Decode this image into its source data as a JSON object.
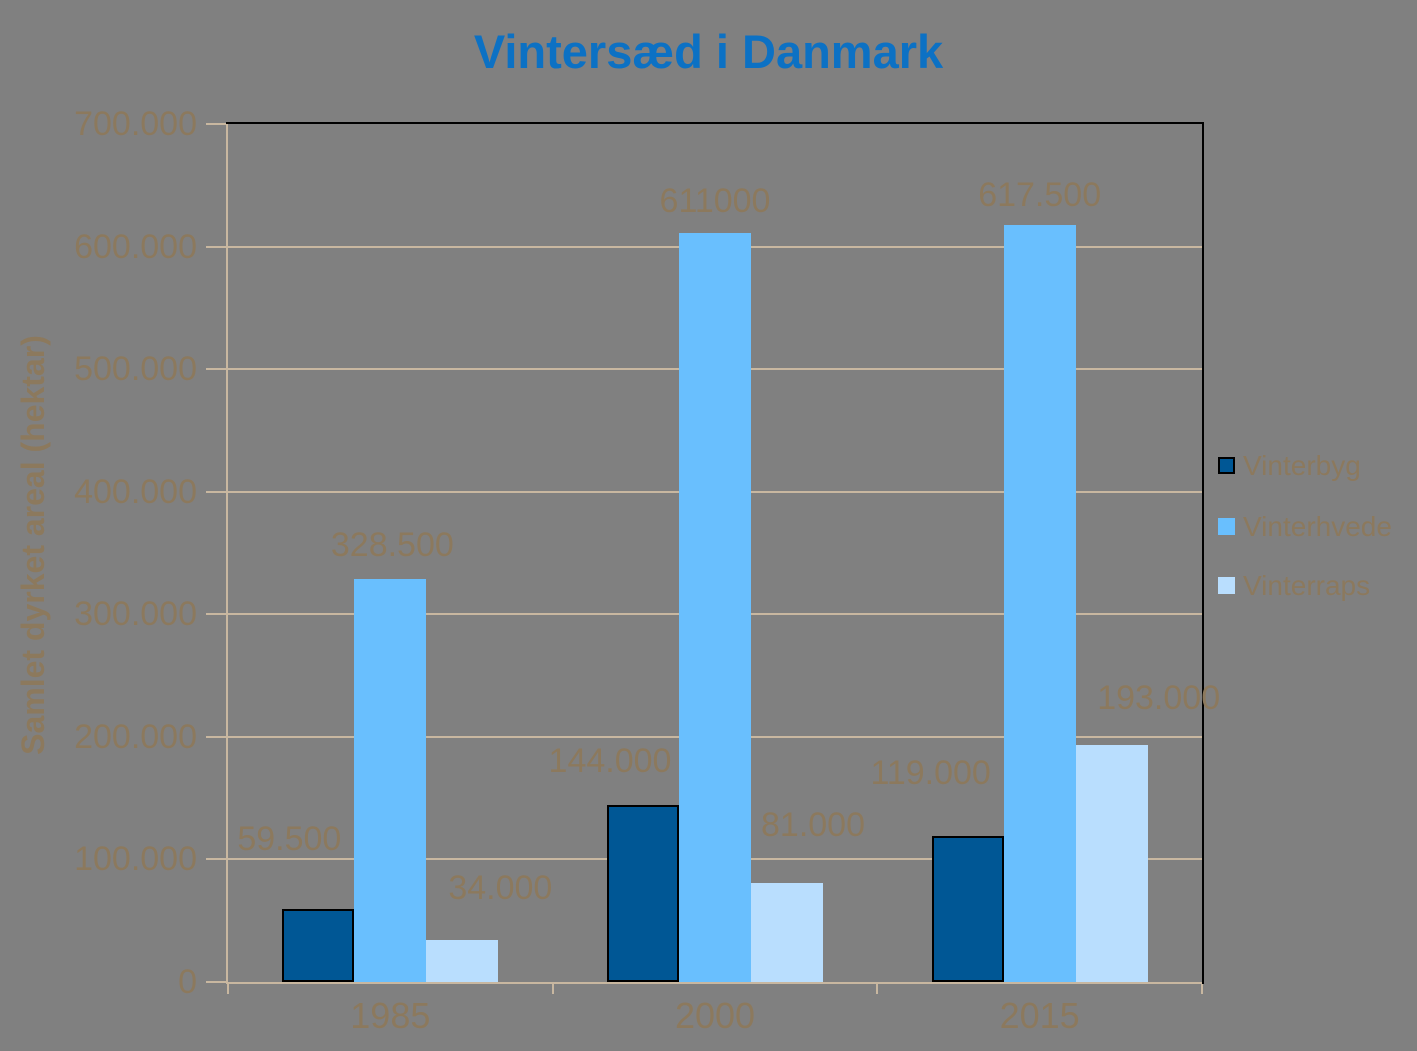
{
  "chart_data": {
    "type": "bar",
    "title": "Vintersæd i Danmark",
    "xlabel": "",
    "ylabel": "Samlet dyrket areal (hektar)",
    "categories": [
      "1985",
      "2000",
      "2015"
    ],
    "series": [
      {
        "name": "Vinterbyg",
        "color": "#005795",
        "border_color": "#000000",
        "values": [
          59500,
          144000,
          119000
        ],
        "labels": [
          "59.500",
          "144.000",
          "119.000"
        ]
      },
      {
        "name": "Vinterhvede",
        "color": "#69BFFE",
        "border_color": null,
        "values": [
          328500,
          611000,
          617500
        ],
        "labels": [
          "328.500",
          "611000",
          "617.500"
        ]
      },
      {
        "name": "Vinterraps",
        "color": "#B9DEFE",
        "border_color": null,
        "values": [
          34000,
          81000,
          193000
        ],
        "labels": [
          "34.000",
          "81.000",
          "193.000"
        ]
      }
    ],
    "ylim": [
      0,
      700000
    ],
    "ytick_step": 100000,
    "ytick_labels": [
      "0",
      "100.000",
      "200.000",
      "300.000",
      "400.000",
      "500.000",
      "600.000",
      "700.000"
    ],
    "grid": true,
    "legend_position": "right",
    "label_offsets": [
      [
        [
          -29,
          -53
        ],
        [
          -33,
          -27
        ],
        [
          -37,
          -46
        ]
      ],
      [
        [
          2,
          -17
        ],
        [
          0,
          -15
        ],
        [
          0,
          -13
        ]
      ],
      [
        [
          38,
          -35
        ],
        [
          26,
          -41
        ],
        [
          47,
          -30
        ]
      ]
    ],
    "colors": {
      "background": "#808080",
      "title": "#0C71C4",
      "text": "#8C795D",
      "grid": "#C8B7A0",
      "plot_border": "#000000"
    }
  }
}
